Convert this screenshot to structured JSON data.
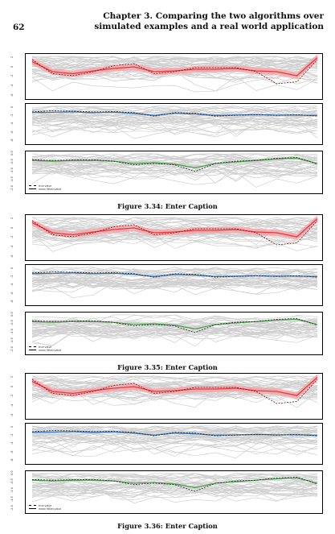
{
  "header": {
    "page_number": "62",
    "chapter_title": "Chapter 3. Comparing the two algorithms over simulated examples and a real world application"
  },
  "figures": [
    {
      "label": "Figure 3.34:",
      "caption": "Enter Caption"
    },
    {
      "label": "Figure 3.35:",
      "caption": "Enter Caption"
    },
    {
      "label": "Figure 3.36:",
      "caption": "Enter Caption"
    }
  ],
  "legend": {
    "true": "true value",
    "mean": "mean fitted value"
  },
  "ytick_labels": {
    "red": [
      "-6",
      "-4",
      "-2",
      "0",
      "2"
    ],
    "blue": [
      "-8",
      "-6",
      "-4",
      "-2",
      "0"
    ],
    "green": [
      "-2.0",
      "-1.5",
      "-1.0",
      "-0.5",
      "0.0"
    ]
  },
  "colors": {
    "red": "#e8383d",
    "blue": "#3a78c2",
    "green": "#4aa04a",
    "band_red": "#f4a3a6",
    "spaghetti": "#cfcfcf"
  },
  "chart_data": [
    {
      "type": "line",
      "panel": "red",
      "x": [
        0,
        1,
        2,
        3,
        4,
        5,
        6,
        7,
        8,
        9,
        10,
        11,
        12,
        13,
        14
      ],
      "series": [
        {
          "name": "true value",
          "values": [
            0.9,
            0.55,
            0.5,
            0.6,
            0.75,
            0.8,
            0.55,
            0.6,
            0.7,
            0.7,
            0.7,
            0.6,
            0.3,
            0.35,
            0.9
          ]
        },
        {
          "name": "mean fitted value",
          "values": [
            0.85,
            0.6,
            0.55,
            0.62,
            0.68,
            0.72,
            0.6,
            0.62,
            0.66,
            0.66,
            0.68,
            0.62,
            0.6,
            0.5,
            0.95
          ]
        }
      ]
    },
    {
      "type": "line",
      "panel": "blue",
      "x": [
        0,
        1,
        2,
        3,
        4,
        5,
        6,
        7,
        8,
        9,
        10,
        11,
        12,
        13,
        14
      ],
      "series": [
        {
          "name": "true value",
          "values": [
            0.82,
            0.85,
            0.84,
            0.82,
            0.83,
            0.8,
            0.7,
            0.8,
            0.78,
            0.7,
            0.72,
            0.74,
            0.72,
            0.74,
            0.7
          ]
        },
        {
          "name": "mean fitted value",
          "values": [
            0.8,
            0.81,
            0.82,
            0.8,
            0.81,
            0.78,
            0.72,
            0.78,
            0.76,
            0.72,
            0.73,
            0.74,
            0.73,
            0.73,
            0.72
          ]
        }
      ]
    },
    {
      "type": "line",
      "panel": "green",
      "x": [
        0,
        1,
        2,
        3,
        4,
        5,
        6,
        7,
        8,
        9,
        10,
        11,
        12,
        13,
        14
      ],
      "series": [
        {
          "name": "true value",
          "values": [
            0.82,
            0.8,
            0.81,
            0.82,
            0.78,
            0.68,
            0.72,
            0.68,
            0.5,
            0.72,
            0.78,
            0.8,
            0.86,
            0.88,
            0.7
          ]
        },
        {
          "name": "mean fitted value",
          "values": [
            0.8,
            0.78,
            0.8,
            0.8,
            0.78,
            0.72,
            0.74,
            0.7,
            0.6,
            0.72,
            0.76,
            0.8,
            0.84,
            0.86,
            0.72
          ]
        }
      ]
    }
  ]
}
